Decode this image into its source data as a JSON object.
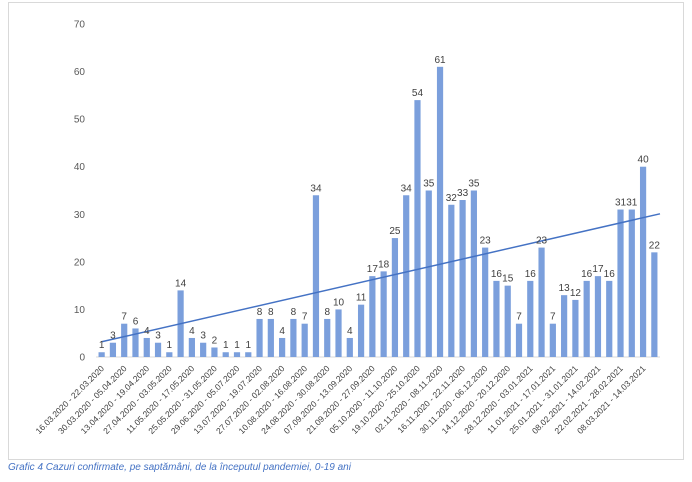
{
  "chart_data": {
    "type": "bar",
    "title": "",
    "xlabel": "",
    "ylabel": "",
    "ylim": [
      0,
      70
    ],
    "yticks": [
      0,
      10,
      20,
      30,
      40,
      50,
      60,
      70
    ],
    "grid": false,
    "legend": "none",
    "bar_color": "#7b9fdc",
    "trendline_color": "#4472c4",
    "trendline": {
      "start": 3.2,
      "end": 30.1
    },
    "values": [
      1,
      3,
      7,
      6,
      4,
      3,
      1,
      14,
      4,
      3,
      2,
      1,
      1,
      1,
      8,
      8,
      4,
      8,
      7,
      34,
      8,
      10,
      4,
      11,
      17,
      18,
      25,
      34,
      54,
      35,
      61,
      32,
      33,
      35,
      23,
      16,
      15,
      7,
      16,
      23,
      7,
      13,
      12,
      16,
      17,
      16,
      31,
      31,
      40,
      22
    ],
    "category_labels": [
      "16.03.2020 - 22.03.2020",
      "30.03.2020 - 05.04.2020",
      "13.04.2020 - 19.04.2020",
      "27.04.2020 - 03.05.2020",
      "11.05.2020 - 17.05.2020",
      "25.05.2020 - 31.05.2020",
      "29.06.2020 - 05.07.2020",
      "13.07.2020 - 19.07.2020",
      "27.07.2020 - 02.08.2020",
      "10.08.2020 - 16.08.2020",
      "24.08.2020 - 30.08.2020",
      "07.09.2020 - 13.09.2020",
      "21.09.2020 - 27.09.2020",
      "05.10.2020 - 11.10.2020",
      "19.10.2020 - 25.10.2020",
      "02.11.2020 - 08.11.2020",
      "16.11.2020 - 22.11.2020",
      "30.11.2020 - 06.12.2020",
      "14.12.2020 - 20.12.2020",
      "28.12.2020 - 03.01.2021",
      "11.01.2021 - 17.01.2021",
      "25.01.2021 - 31.01.2021",
      "08.02.2021 - 14.02.2021",
      "22.02.2021 - 28.02.2021",
      "08.03.2021 - 14.03.2021"
    ],
    "label_bar_index": [
      0,
      2,
      4,
      6,
      8,
      10,
      12,
      14,
      16,
      18,
      20,
      22,
      24,
      26,
      28,
      30,
      32,
      34,
      36,
      38,
      40,
      42,
      44,
      46,
      48
    ]
  },
  "caption": "Grafic  4 Cazuri confirmate, pe saptămâni, de la începutul pandemiei, 0-19 ani"
}
